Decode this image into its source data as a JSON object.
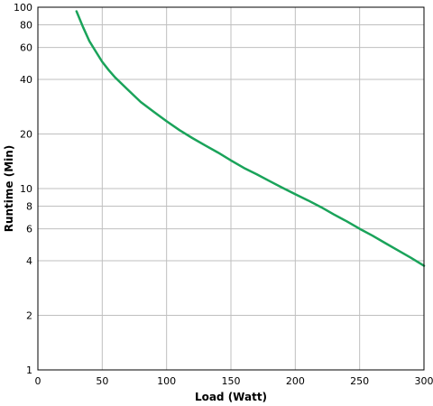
{
  "chart_data": {
    "type": "line",
    "xlabel": "Load (Watt)",
    "ylabel": "Runtime (Min)",
    "xlim": [
      0,
      300
    ],
    "ylim": [
      1,
      100
    ],
    "y_scale": "log",
    "grid": true,
    "x_ticks": [
      0,
      50,
      100,
      150,
      200,
      250,
      300
    ],
    "y_ticks": [
      1,
      2,
      4,
      6,
      8,
      10,
      20,
      40,
      60,
      80,
      100
    ],
    "colors": {
      "series": "#1aa35a",
      "grid": "#bfbfbf",
      "frame": "#000000"
    },
    "series": [
      {
        "x": [
          30,
          35,
          40,
          45,
          50,
          55,
          60,
          70,
          80,
          90,
          100,
          110,
          120,
          130,
          140,
          150,
          160,
          170,
          180,
          190,
          200,
          210,
          220,
          230,
          240,
          250,
          260,
          270,
          280,
          290,
          300
        ],
        "y": [
          95,
          78,
          65,
          57,
          50,
          45,
          41,
          35,
          30,
          26.5,
          23.5,
          21,
          19,
          17.3,
          15.8,
          14.3,
          13,
          12,
          11,
          10.1,
          9.3,
          8.6,
          7.9,
          7.2,
          6.6,
          6.0,
          5.5,
          5.0,
          4.55,
          4.15,
          3.75
        ]
      }
    ]
  }
}
